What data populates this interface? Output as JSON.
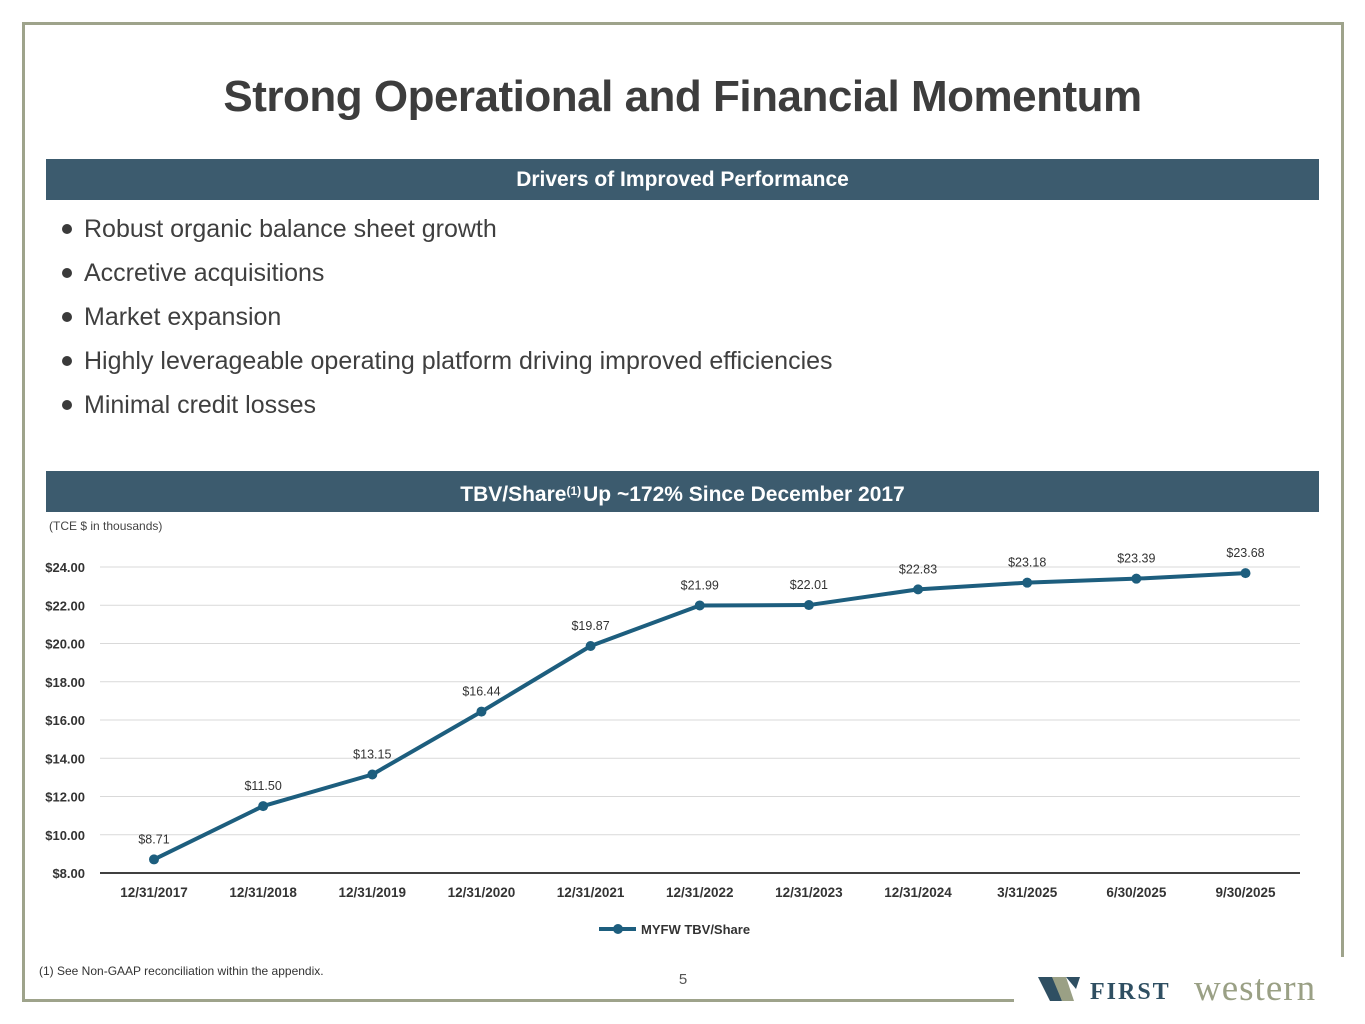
{
  "slide": {
    "title": "Strong Operational and Financial Momentum",
    "drivers_header": "Drivers of Improved Performance",
    "bullets": [
      "Robust organic balance sheet growth",
      "Accretive acquisitions",
      "Market expansion",
      "Highly leverageable operating platform driving improved efficiencies",
      "Minimal credit losses"
    ],
    "chart_header_pre": "TBV/Share",
    "chart_header_sup": "(1)",
    "chart_header_post": "Up ~172% Since December 2017",
    "tce_note": "(TCE $ in thousands)",
    "footnote": "(1) See Non-GAAP reconciliation within the appendix.",
    "page_number": "5",
    "logo_first": "FIRST",
    "logo_western": "western"
  },
  "colors": {
    "band": "#3c5b6e",
    "line": "#1d5e7e",
    "frame": "#9ea38b",
    "logo_dark": "#2f4f62",
    "logo_light": "#9aa085"
  },
  "chart_data": {
    "type": "line",
    "title": "TBV/Share(1) Up ~172% Since December 2017",
    "xlabel": "",
    "ylabel": "",
    "ylim": [
      8,
      24
    ],
    "yticks": [
      8,
      10,
      12,
      14,
      16,
      18,
      20,
      22,
      24
    ],
    "ytick_labels": [
      "$8.00",
      "$10.00",
      "$12.00",
      "$14.00",
      "$16.00",
      "$18.00",
      "$20.00",
      "$22.00",
      "$24.00"
    ],
    "grid": true,
    "legend": "bottom",
    "categories": [
      "12/31/2017",
      "12/31/2018",
      "12/31/2019",
      "12/31/2020",
      "12/31/2021",
      "12/31/2022",
      "12/31/2023",
      "12/31/2024",
      "3/31/2025",
      "6/30/2025",
      "9/30/2025"
    ],
    "series": [
      {
        "name": "MYFW TBV/Share",
        "values": [
          8.71,
          11.5,
          13.15,
          16.44,
          19.87,
          21.99,
          22.01,
          22.83,
          23.18,
          23.39,
          23.68
        ],
        "labels": [
          "$8.71",
          "$11.50",
          "$13.15",
          "$16.44",
          "$19.87",
          "$21.99",
          "$22.01",
          "$22.83",
          "$23.18",
          "$23.39",
          "$23.68"
        ]
      }
    ]
  }
}
